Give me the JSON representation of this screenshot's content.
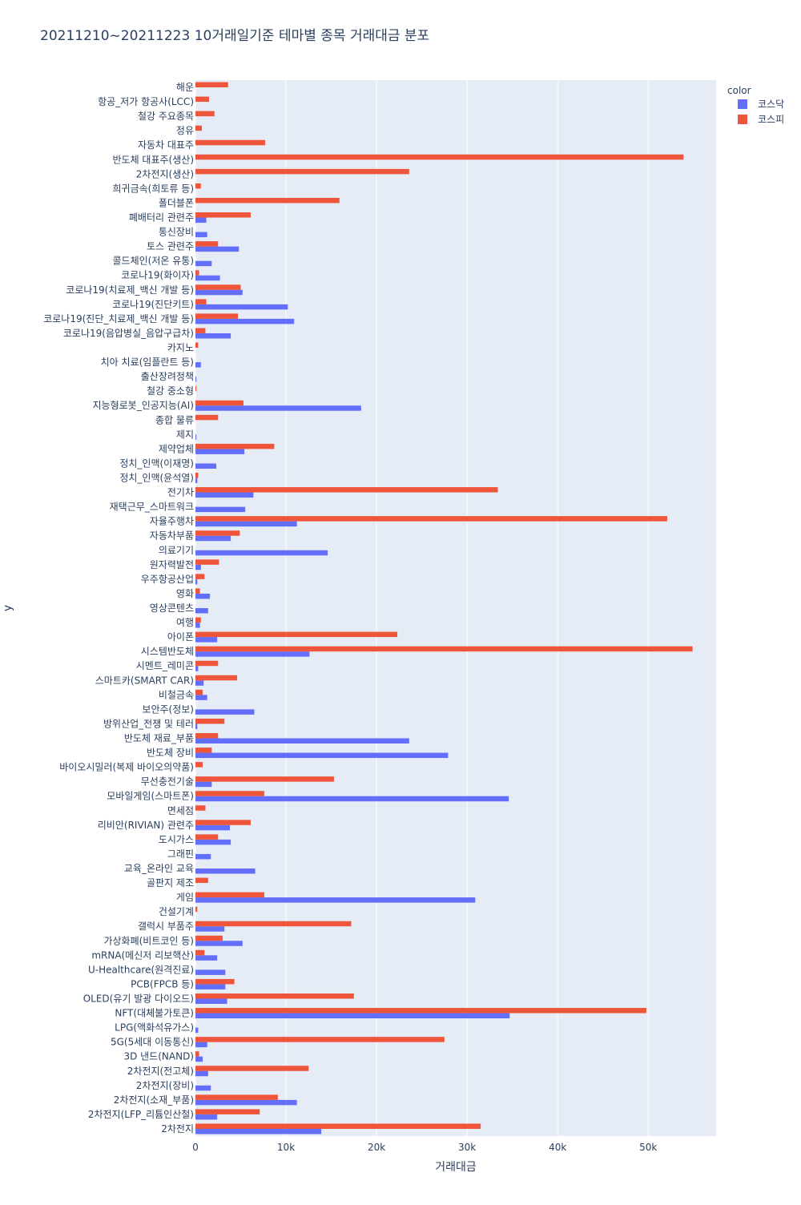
{
  "chart_data": {
    "type": "bar",
    "orientation": "horizontal",
    "barmode": "group",
    "title": "20211210~20211223 10거래일기준 테마별 종목 거래대금 분포",
    "xlabel": "거래대금",
    "ylabel": "y",
    "xlim": [
      0,
      57500
    ],
    "x_ticks": [
      0,
      10000,
      20000,
      30000,
      40000,
      50000
    ],
    "x_tick_labels": [
      "0",
      "10k",
      "20k",
      "30k",
      "40k",
      "50k"
    ],
    "grid": true,
    "legend": {
      "title": "color",
      "position": "top-right"
    },
    "categories": [
      "해운",
      "항공_저가 항공사(LCC)",
      "철강 주요종목",
      "정유",
      "자동차 대표주",
      "반도체 대표주(생산)",
      "2차전지(생산)",
      "희귀금속(희토류 등)",
      "폴더블폰",
      "폐배터리 관련주",
      "통신장비",
      "토스 관련주",
      "콜드체인(저온 유통)",
      "코로나19(화이자)",
      "코로나19(치료제_백신 개발 등)",
      "코로나19(진단키트)",
      "코로나19(진단_치료제_백신 개발 등)",
      "코로나19(음압병실_음압구급차)",
      "카지노",
      "치아 치료(임플란트 등)",
      "출산장려정책",
      "철강 중소형",
      "지능형로봇_인공지능(AI)",
      "종합 물류",
      "제지",
      "제약업체",
      "정치_인맥(이재명)",
      "정치_인맥(윤석열)",
      "전기차",
      "재택근무_스마트워크",
      "자율주행차",
      "자동차부품",
      "의료기기",
      "원자력발전",
      "우주항공산업",
      "영화",
      "영상콘텐츠",
      "여행",
      "아이폰",
      "시스템반도체",
      "시멘트_레미콘",
      "스마트카(SMART CAR)",
      "비철금속",
      "보안주(정보)",
      "방위산업_전쟁 및 테러",
      "반도체 재료_부품",
      "반도체 장비",
      "바이오시밀러(복제 바이오의약품)",
      "무선충전기술",
      "모바일게임(스마트폰)",
      "면세점",
      "리비안(RIVIAN) 관련주",
      "도시가스",
      "그래핀",
      "교육_온라인 교육",
      "골판지 제조",
      "게임",
      "건설기계",
      "갤럭시 부품주",
      "가상화폐(비트코인 등)",
      "mRNA(메신저 리보핵산)",
      "U-Healthcare(원격진료)",
      "PCB(FPCB 등)",
      "OLED(유기 발광 다이오드)",
      "NFT(대체불가토큰)",
      "LPG(액화석유가스)",
      "5G(5세대 이동통신)",
      "3D 낸드(NAND)",
      "2차전지(전고체)",
      "2차전지(장비)",
      "2차전지(소재_부품)",
      "2차전지(LFP_리튬인산철)",
      "2차전지"
    ],
    "series": [
      {
        "name": "코스닥",
        "color": "#636efa",
        "values": [
          0,
          0,
          0,
          0,
          0,
          0,
          0,
          0,
          0,
          1200,
          1300,
          4800,
          1800,
          2700,
          5200,
          10200,
          10900,
          3900,
          0,
          600,
          100,
          0,
          18300,
          0,
          100,
          5400,
          2300,
          200,
          6400,
          5500,
          11200,
          3900,
          14600,
          600,
          200,
          1600,
          1400,
          500,
          2400,
          12600,
          300,
          900,
          1300,
          6500,
          200,
          23600,
          27900,
          0,
          1800,
          34600,
          0,
          3800,
          3900,
          1700,
          6600,
          0,
          30900,
          0,
          3200,
          5200,
          2400,
          3300,
          3300,
          3500,
          34700,
          300,
          1300,
          800,
          1400,
          1700,
          11200,
          2400,
          13900
        ]
      },
      {
        "name": "코스피",
        "color": "#ef553b",
        "values": [
          3600,
          1500,
          2100,
          700,
          7700,
          53900,
          23600,
          600,
          15900,
          6100,
          0,
          2500,
          0,
          400,
          5000,
          1200,
          4700,
          1100,
          300,
          0,
          0,
          100,
          5300,
          2500,
          0,
          8700,
          0,
          300,
          33400,
          0,
          52100,
          4900,
          0,
          2600,
          1000,
          500,
          0,
          600,
          22300,
          54900,
          2500,
          4600,
          800,
          0,
          3200,
          2500,
          1800,
          800,
          15300,
          7600,
          1100,
          6100,
          2500,
          0,
          0,
          1400,
          7600,
          200,
          17200,
          3000,
          1000,
          0,
          4300,
          17500,
          49800,
          0,
          27500,
          400,
          12500,
          0,
          9100,
          7100,
          31500
        ]
      }
    ]
  }
}
